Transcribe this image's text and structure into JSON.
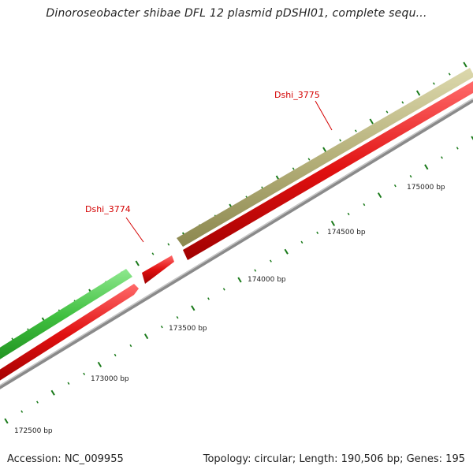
{
  "title": "Dinoroseobacter shibae DFL 12 plasmid pDSHI01, complete sequ...",
  "footer": {
    "accession": "Accession: NC_009955",
    "stats": "Topology: circular; Length: 190,506 bp; Genes: 195"
  },
  "colors": {
    "plus_strand_gene": "#3fbf3f",
    "plus_strand_gene_tan": "#b5b07a",
    "minus_strand_gene": "#e01010",
    "backbone": "#8a8a8a",
    "tick": "#1a7a1a",
    "label": "#d40000"
  },
  "position_labels": [
    "172500 bp",
    "173000 bp",
    "173500 bp",
    "174000 bp",
    "174500 bp",
    "175000 bp"
  ],
  "genes": [
    {
      "name": "Dshi_3774",
      "labeled": true
    },
    {
      "name": "Dshi_3775",
      "labeled": true
    }
  ]
}
